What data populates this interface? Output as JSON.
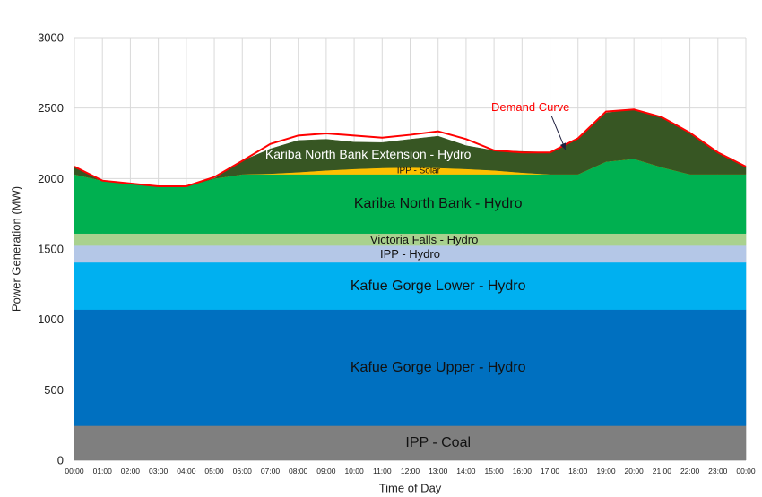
{
  "chart_data": {
    "type": "area",
    "stacked": true,
    "title": "",
    "xlabel": "Time of Day",
    "ylabel": "Power Generation (MW)",
    "ylim": [
      0,
      3000
    ],
    "yticks": [
      0,
      500,
      1000,
      1500,
      2000,
      2500,
      3000
    ],
    "grid": true,
    "legend": "none",
    "x": [
      "00:00",
      "01:00",
      "02:00",
      "03:00",
      "04:00",
      "05:00",
      "06:00",
      "07:00",
      "08:00",
      "09:00",
      "10:00",
      "11:00",
      "12:00",
      "13:00",
      "14:00",
      "15:00",
      "16:00",
      "17:00",
      "18:00",
      "19:00",
      "20:00",
      "21:00",
      "22:00",
      "23:00",
      "00:00"
    ],
    "series": [
      {
        "name": "IPP - Coal",
        "color": "#7f7f7f",
        "text_color": "#111111",
        "font_size": 16,
        "values": [
          245,
          245,
          245,
          245,
          245,
          245,
          245,
          245,
          245,
          245,
          245,
          245,
          245,
          245,
          245,
          245,
          245,
          245,
          245,
          245,
          245,
          245,
          245,
          245,
          245
        ]
      },
      {
        "name": "Kafue Gorge Upper - Hydro",
        "color": "#0070c0",
        "text_color": "#111111",
        "font_size": 16,
        "values": [
          825,
          825,
          825,
          825,
          825,
          825,
          825,
          825,
          825,
          825,
          825,
          825,
          825,
          825,
          825,
          825,
          825,
          825,
          825,
          825,
          825,
          825,
          825,
          825,
          825
        ]
      },
      {
        "name": "Kafue Gorge Lower - Hydro",
        "color": "#00b0f0",
        "text_color": "#111111",
        "font_size": 16,
        "values": [
          335,
          335,
          335,
          335,
          335,
          335,
          335,
          335,
          335,
          335,
          335,
          335,
          335,
          335,
          335,
          335,
          335,
          335,
          335,
          335,
          335,
          335,
          335,
          335,
          335
        ]
      },
      {
        "name": "IPP - Hydro",
        "color": "#b4c7e7",
        "text_color": "#111111",
        "font_size": 13,
        "values": [
          120,
          120,
          120,
          120,
          120,
          120,
          120,
          120,
          120,
          120,
          120,
          120,
          120,
          120,
          120,
          120,
          120,
          120,
          120,
          120,
          120,
          120,
          120,
          120,
          120
        ]
      },
      {
        "name": "Victoria Falls - Hydro",
        "color": "#a9d18e",
        "text_color": "#111111",
        "font_size": 13,
        "values": [
          85,
          85,
          85,
          85,
          85,
          85,
          85,
          85,
          85,
          85,
          85,
          85,
          85,
          85,
          85,
          85,
          85,
          85,
          85,
          85,
          85,
          85,
          85,
          85,
          85
        ]
      },
      {
        "name": "Kariba North Bank - Hydro",
        "color": "#00b050",
        "text_color": "#111111",
        "font_size": 16,
        "values": [
          420,
          375,
          355,
          335,
          335,
          390,
          420,
          420,
          420,
          420,
          420,
          420,
          420,
          420,
          420,
          420,
          420,
          420,
          420,
          510,
          530,
          470,
          420,
          420,
          420
        ]
      },
      {
        "name": "IPP - Solar",
        "color": "#ffc000",
        "text_color": "#111111",
        "font_size": 10,
        "values": [
          0,
          0,
          0,
          0,
          0,
          0,
          0,
          5,
          15,
          28,
          38,
          45,
          48,
          45,
          38,
          28,
          12,
          0,
          0,
          0,
          0,
          0,
          0,
          0,
          0
        ]
      },
      {
        "name": "Kariba North Bank Extension - Hydro",
        "color": "#375623",
        "text_color": "#ffffff",
        "font_size": 14,
        "values": [
          55,
          0,
          0,
          0,
          0,
          0,
          95,
          175,
          225,
          220,
          190,
          180,
          200,
          225,
          165,
          140,
          150,
          155,
          250,
          345,
          350,
          355,
          290,
          150,
          50
        ]
      }
    ],
    "demand_curve": {
      "name": "Demand Curve",
      "color": "#ff0000",
      "values": [
        2085,
        1985,
        1965,
        1945,
        1945,
        2010,
        2125,
        2245,
        2305,
        2320,
        2305,
        2290,
        2310,
        2335,
        2280,
        2200,
        2185,
        2185,
        2285,
        2475,
        2490,
        2435,
        2325,
        2185,
        2085
      ]
    }
  }
}
